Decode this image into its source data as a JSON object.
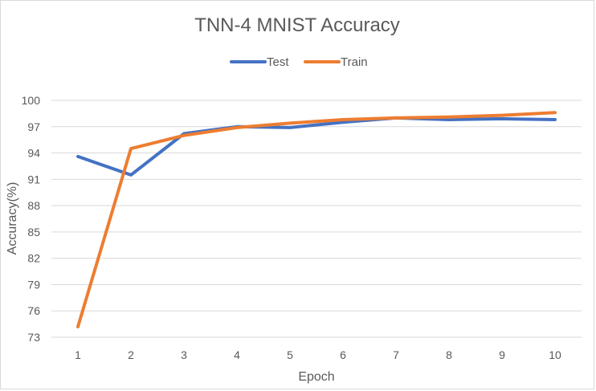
{
  "chart_data": {
    "type": "line",
    "title": "TNN-4 MNIST Accuracy",
    "xlabel": "Epoch",
    "ylabel": "Accuracy(%)",
    "x": [
      1,
      2,
      3,
      4,
      5,
      6,
      7,
      8,
      9,
      10
    ],
    "x_tick_labels": [
      "1",
      "2",
      "3",
      "4",
      "5",
      "6",
      "7",
      "8",
      "9",
      "10"
    ],
    "y_ticks": [
      73,
      76,
      79,
      82,
      85,
      88,
      91,
      94,
      97,
      100
    ],
    "y_tick_labels": [
      "73",
      "76",
      "79",
      "82",
      "85",
      "88",
      "91",
      "94",
      "97",
      "100"
    ],
    "ylim": [
      73,
      100
    ],
    "grid": "horizontal",
    "legend_position": "top",
    "series": [
      {
        "name": "Test",
        "color": "#4472c4",
        "values": [
          93.6,
          91.5,
          96.2,
          97.0,
          96.9,
          97.5,
          98.0,
          97.8,
          97.9,
          97.8
        ]
      },
      {
        "name": "Train",
        "color": "#ed7d31",
        "values": [
          74.2,
          94.5,
          96.0,
          96.9,
          97.4,
          97.8,
          98.0,
          98.1,
          98.3,
          98.6
        ]
      }
    ]
  }
}
